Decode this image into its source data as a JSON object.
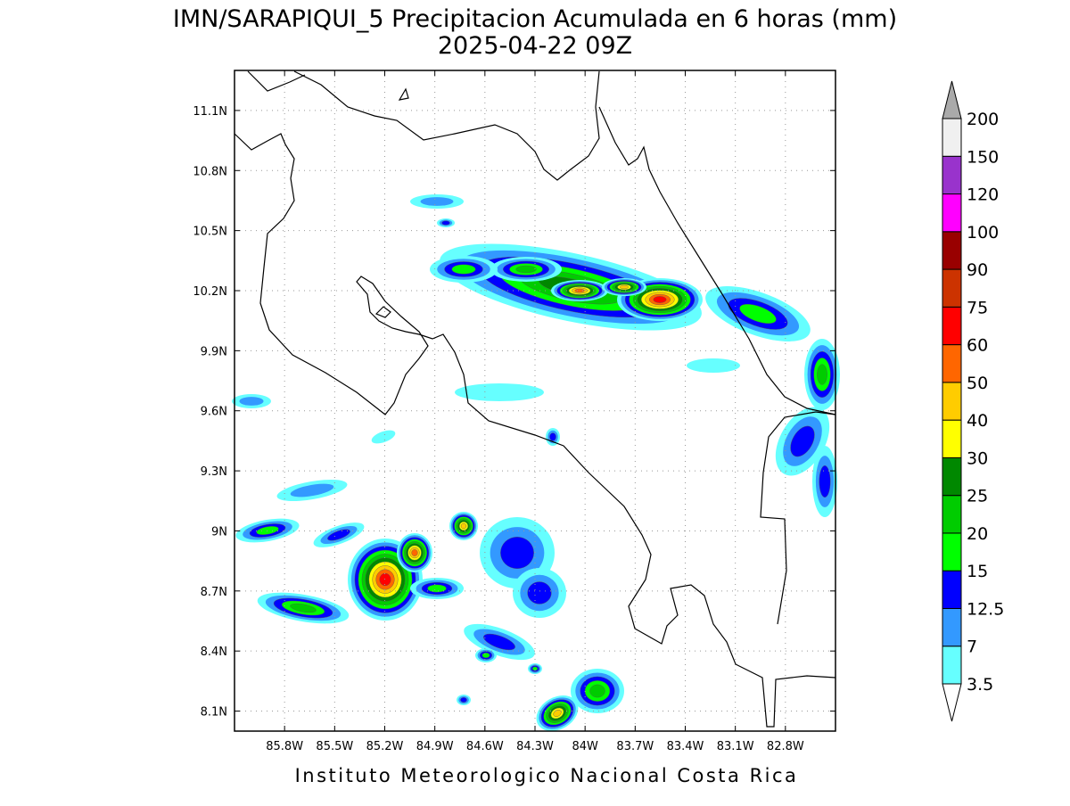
{
  "title": "IMN/SARAPIQUI_5 Precipitacion Acumulada en 6 horas (mm)",
  "subtitle": "2025-04-22 09Z",
  "footer": "Instituto Meteorologico Nacional Costa Rica",
  "map": {
    "lat_lim": [
      8.0,
      11.3
    ],
    "lon_lim": [
      -86.1,
      -82.5
    ],
    "lat_ticks": [
      {
        "value": 8.1,
        "label": "8.1N"
      },
      {
        "value": 8.4,
        "label": "8.4N"
      },
      {
        "value": 8.7,
        "label": "8.7N"
      },
      {
        "value": 9.0,
        "label": "9N"
      },
      {
        "value": 9.3,
        "label": "9.3N"
      },
      {
        "value": 9.6,
        "label": "9.6N"
      },
      {
        "value": 9.9,
        "label": "9.9N"
      },
      {
        "value": 10.2,
        "label": "10.2N"
      },
      {
        "value": 10.5,
        "label": "10.5N"
      },
      {
        "value": 10.8,
        "label": "10.8N"
      },
      {
        "value": 11.1,
        "label": "11.1N"
      }
    ],
    "lon_ticks": [
      {
        "value": -85.8,
        "label": "85.8W"
      },
      {
        "value": -85.5,
        "label": "85.5W"
      },
      {
        "value": -85.2,
        "label": "85.2W"
      },
      {
        "value": -84.9,
        "label": "84.9W"
      },
      {
        "value": -84.6,
        "label": "84.6W"
      },
      {
        "value": -84.3,
        "label": "84.3W"
      },
      {
        "value": -84.0,
        "label": "84W"
      },
      {
        "value": -83.7,
        "label": "83.7W"
      },
      {
        "value": -83.4,
        "label": "83.4W"
      },
      {
        "value": -83.1,
        "label": "83.1W"
      },
      {
        "value": -82.8,
        "label": "82.8W"
      }
    ],
    "grid": true
  },
  "colorbar": {
    "levels": [
      3.5,
      7,
      12.5,
      15,
      20,
      25,
      30,
      40,
      50,
      60,
      75,
      90,
      100,
      120,
      150,
      200
    ],
    "colors": [
      "#ffffff",
      "#66ffff",
      "#3399ff",
      "#0000ff",
      "#00ff00",
      "#00cc00",
      "#008800",
      "#ffff00",
      "#ffcc00",
      "#ff6600",
      "#ff0000",
      "#cc3300",
      "#990000",
      "#ff00ff",
      "#9933cc",
      "#f0f0f0",
      "#aaaaaa"
    ]
  }
}
